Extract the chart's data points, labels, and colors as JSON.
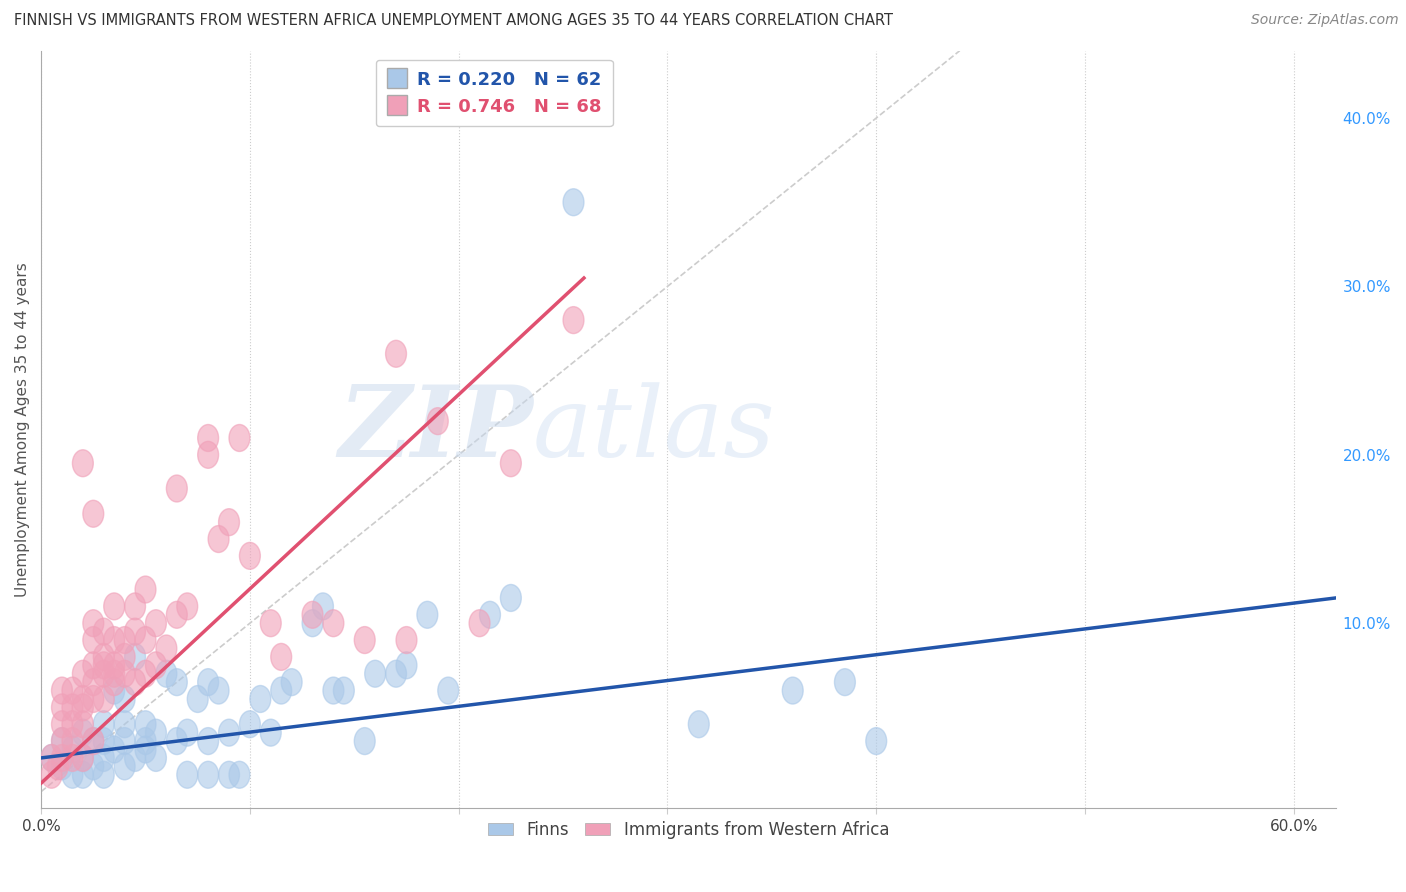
{
  "title": "FINNISH VS IMMIGRANTS FROM WESTERN AFRICA UNEMPLOYMENT AMONG AGES 35 TO 44 YEARS CORRELATION CHART",
  "source": "Source: ZipAtlas.com",
  "ylabel": "Unemployment Among Ages 35 to 44 years",
  "xlim": [
    0.0,
    0.62
  ],
  "ylim": [
    -0.01,
    0.44
  ],
  "x_ticks": [
    0.0,
    0.1,
    0.2,
    0.3,
    0.4,
    0.5,
    0.6
  ],
  "x_tick_labels_show": [
    "0.0%",
    "",
    "",
    "",
    "",
    "",
    "60.0%"
  ],
  "y_ticks": [
    0.0,
    0.1,
    0.2,
    0.3,
    0.4
  ],
  "y_tick_labels": [
    "",
    "10.0%",
    "20.0%",
    "30.0%",
    "40.0%"
  ],
  "grid_color": "#cccccc",
  "watermark_zip": "ZIP",
  "watermark_atlas": "atlas",
  "legend_r_finns": "R = 0.220",
  "legend_n_finns": "N = 62",
  "legend_r_immigrants": "R = 0.746",
  "legend_n_immigrants": "N = 68",
  "finns_color": "#aac8e8",
  "immigrants_color": "#f0a0b8",
  "finns_line_color": "#2255aa",
  "immigrants_line_color": "#e05070",
  "identity_line_color": "#cccccc",
  "background_color": "#ffffff",
  "finns_scatter": [
    [
      0.005,
      0.02
    ],
    [
      0.01,
      0.015
    ],
    [
      0.01,
      0.03
    ],
    [
      0.015,
      0.01
    ],
    [
      0.015,
      0.025
    ],
    [
      0.02,
      0.01
    ],
    [
      0.02,
      0.02
    ],
    [
      0.02,
      0.035
    ],
    [
      0.025,
      0.015
    ],
    [
      0.025,
      0.03
    ],
    [
      0.03,
      0.01
    ],
    [
      0.03,
      0.02
    ],
    [
      0.03,
      0.03
    ],
    [
      0.03,
      0.04
    ],
    [
      0.035,
      0.06
    ],
    [
      0.035,
      0.025
    ],
    [
      0.04,
      0.015
    ],
    [
      0.04,
      0.03
    ],
    [
      0.04,
      0.04
    ],
    [
      0.04,
      0.055
    ],
    [
      0.045,
      0.08
    ],
    [
      0.045,
      0.02
    ],
    [
      0.05,
      0.03
    ],
    [
      0.05,
      0.025
    ],
    [
      0.05,
      0.04
    ],
    [
      0.055,
      0.02
    ],
    [
      0.055,
      0.035
    ],
    [
      0.06,
      0.07
    ],
    [
      0.065,
      0.065
    ],
    [
      0.065,
      0.03
    ],
    [
      0.07,
      0.01
    ],
    [
      0.07,
      0.035
    ],
    [
      0.075,
      0.055
    ],
    [
      0.08,
      0.01
    ],
    [
      0.08,
      0.03
    ],
    [
      0.08,
      0.065
    ],
    [
      0.085,
      0.06
    ],
    [
      0.09,
      0.01
    ],
    [
      0.09,
      0.035
    ],
    [
      0.095,
      0.01
    ],
    [
      0.1,
      0.04
    ],
    [
      0.105,
      0.055
    ],
    [
      0.11,
      0.035
    ],
    [
      0.115,
      0.06
    ],
    [
      0.12,
      0.065
    ],
    [
      0.13,
      0.1
    ],
    [
      0.135,
      0.11
    ],
    [
      0.14,
      0.06
    ],
    [
      0.145,
      0.06
    ],
    [
      0.155,
      0.03
    ],
    [
      0.16,
      0.07
    ],
    [
      0.17,
      0.07
    ],
    [
      0.175,
      0.075
    ],
    [
      0.185,
      0.105
    ],
    [
      0.195,
      0.06
    ],
    [
      0.215,
      0.105
    ],
    [
      0.225,
      0.115
    ],
    [
      0.255,
      0.35
    ],
    [
      0.315,
      0.04
    ],
    [
      0.36,
      0.06
    ],
    [
      0.385,
      0.065
    ],
    [
      0.4,
      0.03
    ]
  ],
  "immigrants_scatter": [
    [
      0.005,
      0.01
    ],
    [
      0.005,
      0.02
    ],
    [
      0.008,
      0.015
    ],
    [
      0.01,
      0.02
    ],
    [
      0.01,
      0.03
    ],
    [
      0.01,
      0.04
    ],
    [
      0.01,
      0.05
    ],
    [
      0.01,
      0.06
    ],
    [
      0.015,
      0.02
    ],
    [
      0.015,
      0.03
    ],
    [
      0.015,
      0.04
    ],
    [
      0.015,
      0.05
    ],
    [
      0.015,
      0.06
    ],
    [
      0.02,
      0.02
    ],
    [
      0.02,
      0.04
    ],
    [
      0.02,
      0.05
    ],
    [
      0.02,
      0.055
    ],
    [
      0.02,
      0.07
    ],
    [
      0.025,
      0.03
    ],
    [
      0.025,
      0.055
    ],
    [
      0.025,
      0.065
    ],
    [
      0.025,
      0.075
    ],
    [
      0.025,
      0.09
    ],
    [
      0.025,
      0.1
    ],
    [
      0.03,
      0.055
    ],
    [
      0.03,
      0.07
    ],
    [
      0.03,
      0.075
    ],
    [
      0.03,
      0.08
    ],
    [
      0.03,
      0.095
    ],
    [
      0.035,
      0.065
    ],
    [
      0.035,
      0.07
    ],
    [
      0.035,
      0.075
    ],
    [
      0.035,
      0.09
    ],
    [
      0.035,
      0.11
    ],
    [
      0.04,
      0.07
    ],
    [
      0.04,
      0.08
    ],
    [
      0.04,
      0.09
    ],
    [
      0.045,
      0.065
    ],
    [
      0.045,
      0.095
    ],
    [
      0.045,
      0.11
    ],
    [
      0.05,
      0.07
    ],
    [
      0.05,
      0.09
    ],
    [
      0.05,
      0.12
    ],
    [
      0.055,
      0.075
    ],
    [
      0.055,
      0.1
    ],
    [
      0.06,
      0.085
    ],
    [
      0.065,
      0.105
    ],
    [
      0.065,
      0.18
    ],
    [
      0.07,
      0.11
    ],
    [
      0.08,
      0.2
    ],
    [
      0.08,
      0.21
    ],
    [
      0.085,
      0.15
    ],
    [
      0.09,
      0.16
    ],
    [
      0.095,
      0.21
    ],
    [
      0.1,
      0.14
    ],
    [
      0.11,
      0.1
    ],
    [
      0.115,
      0.08
    ],
    [
      0.13,
      0.105
    ],
    [
      0.14,
      0.1
    ],
    [
      0.155,
      0.09
    ],
    [
      0.17,
      0.26
    ],
    [
      0.175,
      0.09
    ],
    [
      0.19,
      0.22
    ],
    [
      0.21,
      0.1
    ],
    [
      0.225,
      0.195
    ],
    [
      0.255,
      0.28
    ],
    [
      0.02,
      0.195
    ],
    [
      0.025,
      0.165
    ]
  ],
  "finns_line_x": [
    0.0,
    0.62
  ],
  "finns_line_y": [
    0.02,
    0.115
  ],
  "immigrants_line_x": [
    0.0,
    0.26
  ],
  "immigrants_line_y": [
    0.005,
    0.305
  ],
  "identity_line_x": [
    0.0,
    0.44
  ],
  "identity_line_y": [
    0.0,
    0.44
  ]
}
